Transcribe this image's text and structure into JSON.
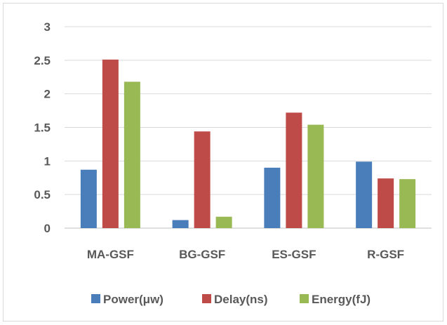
{
  "chart_data": {
    "type": "bar",
    "categories": [
      "MA-GSF",
      "BG-GSF",
      "ES-GSF",
      "R-GSF"
    ],
    "series": [
      {
        "name": "Power(μw)",
        "values": [
          0.87,
          0.12,
          0.9,
          0.99
        ],
        "color": "#4a7ebb"
      },
      {
        "name": "Delay(ns)",
        "values": [
          2.51,
          1.44,
          1.72,
          0.74
        ],
        "color": "#be4b48"
      },
      {
        "name": "Energy(fJ)",
        "values": [
          2.18,
          0.17,
          1.54,
          0.73
        ],
        "color": "#98b954"
      }
    ],
    "yticks": [
      "0",
      "0.5",
      "1",
      "1.5",
      "2",
      "2.5",
      "3"
    ],
    "ylim": [
      0,
      3
    ],
    "grid": true,
    "legend_position": "bottom"
  }
}
